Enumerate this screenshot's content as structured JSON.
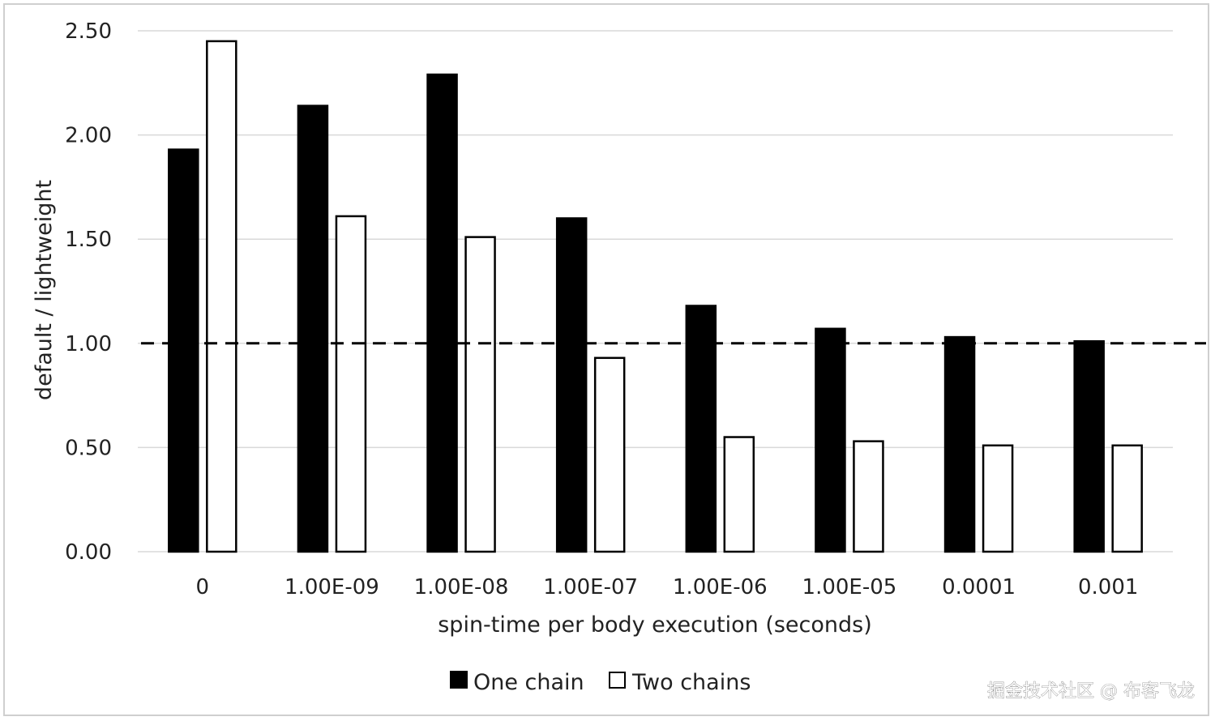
{
  "chart_data": {
    "type": "bar",
    "xlabel": "spin-time per body execution (seconds)",
    "ylabel": "default / lightweight",
    "categories": [
      "0",
      "1.00E-09",
      "1.00E-08",
      "1.00E-07",
      "1.00E-06",
      "1.00E-05",
      "0.0001",
      "0.001"
    ],
    "series": [
      {
        "name": "One chain",
        "values": [
          1.93,
          2.14,
          2.29,
          1.6,
          1.18,
          1.07,
          1.03,
          1.01
        ],
        "fill": "#000000",
        "stroke": "#000000"
      },
      {
        "name": "Two chains",
        "values": [
          2.45,
          1.61,
          1.51,
          0.93,
          0.55,
          0.53,
          0.51,
          0.51
        ],
        "fill": "#ffffff",
        "stroke": "#000000"
      }
    ],
    "ylim": [
      0,
      2.5
    ],
    "yticks": [
      "0.00",
      "0.50",
      "1.00",
      "1.50",
      "2.00",
      "2.50"
    ],
    "reference_line": {
      "value": 1.0,
      "style": "dashed"
    },
    "grid": true,
    "legend_position": "bottom-center"
  },
  "watermark": "掘金技术社区 @ 布客飞龙"
}
